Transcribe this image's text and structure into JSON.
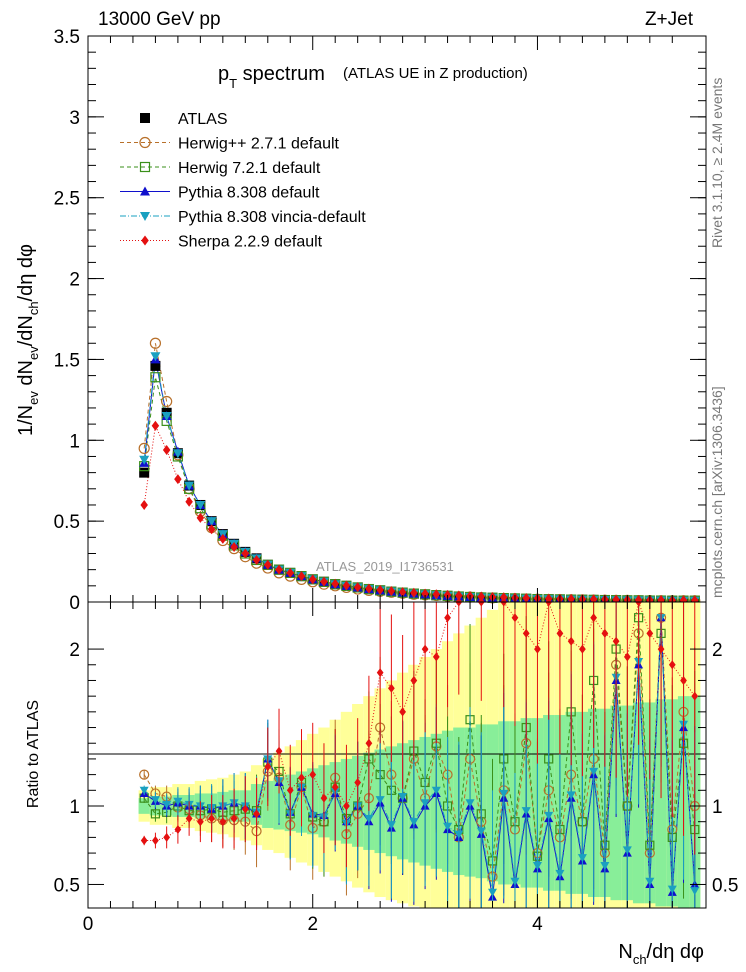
{
  "header": {
    "left": "13000 GeV pp",
    "right": "Z+Jet"
  },
  "title": {
    "main_p": "p",
    "main_sub": "T",
    "main_rest": " spectrum",
    "paren": "(ATLAS UE in Z production)"
  },
  "side_labels": {
    "rivet": "Rivet 3.1.10, ≥ 2.4M events",
    "mcplots": "mcplots.cern.ch [arXiv:1306.3436]"
  },
  "watermark": "ATLAS_2019_I1736531",
  "colors": {
    "atlas": "#000000",
    "herwigpp": "#b8702a",
    "herwig7": "#3a8f1a",
    "pythia": "#1010cc",
    "vincia": "#1aa0c0",
    "sherpa": "#e41010",
    "band_outer": "#ffff99",
    "band_inner": "#88ee99"
  },
  "chart_data": [
    {
      "type": "line",
      "panel": "main",
      "ylabel": "1/N_ev dN_ev/dN_ch/dη dφ",
      "xlim": [
        0,
        5.5
      ],
      "ylim": [
        0,
        3.5
      ],
      "y_ticks": [
        "0",
        "0.5",
        "1",
        "1.5",
        "2",
        "2.5",
        "3",
        "3.5"
      ],
      "x": [
        0.5,
        0.6,
        0.7,
        0.8,
        0.9,
        1.0,
        1.1,
        1.2,
        1.3,
        1.4,
        1.5,
        1.6,
        1.7,
        1.8,
        1.9,
        2.0,
        2.1,
        2.2,
        2.3,
        2.4,
        2.5,
        2.6,
        2.7,
        2.8,
        2.9,
        3.0,
        3.1,
        3.2,
        3.3,
        3.4,
        3.5,
        3.6,
        3.7,
        3.8,
        3.9,
        4.0,
        4.1,
        4.2,
        4.3,
        4.4,
        4.5,
        4.6,
        4.7,
        4.8,
        4.9,
        5.0,
        5.1,
        5.2,
        5.3,
        5.4
      ],
      "series": [
        {
          "name": "ATLAS",
          "key": "atlas",
          "marker": "square-filled",
          "line": "none",
          "values": [
            0.8,
            1.46,
            1.17,
            0.92,
            0.72,
            0.6,
            0.5,
            0.42,
            0.36,
            0.31,
            0.27,
            0.23,
            0.2,
            0.18,
            0.16,
            0.14,
            0.125,
            0.11,
            0.1,
            0.09,
            0.08,
            0.072,
            0.064,
            0.058,
            0.052,
            0.047,
            0.042,
            0.038,
            0.034,
            0.031,
            0.028,
            0.026,
            0.024,
            0.022,
            0.02,
            0.018,
            0.017,
            0.016,
            0.015,
            0.014,
            0.013,
            0.012,
            0.011,
            0.01,
            0.01,
            0.009,
            0.009,
            0.008,
            0.008,
            0.008
          ]
        },
        {
          "name": "Herwig++ 2.7.1 default",
          "key": "herwigpp",
          "marker": "circle-open",
          "line": "dashed",
          "values": [
            0.95,
            1.6,
            1.24,
            0.91,
            0.7,
            0.56,
            0.46,
            0.38,
            0.33,
            0.28,
            0.24,
            0.21,
            0.18,
            0.16,
            0.14,
            0.125,
            0.11,
            0.1,
            0.09,
            0.08,
            0.072,
            0.066,
            0.06,
            0.054,
            0.048,
            0.044,
            0.04,
            0.036,
            0.032,
            0.03,
            0.027,
            0.025,
            0.022,
            0.02,
            0.018,
            0.017,
            0.016,
            0.015,
            0.014,
            0.013,
            0.012,
            0.011,
            0.01,
            0.01,
            0.009,
            0.009,
            0.008,
            0.008,
            0.008,
            0.008
          ]
        },
        {
          "name": "Herwig 7.2.1 default",
          "key": "herwig7",
          "marker": "square-open",
          "line": "dashed",
          "values": [
            0.84,
            1.39,
            1.12,
            0.9,
            0.7,
            0.58,
            0.48,
            0.41,
            0.35,
            0.3,
            0.26,
            0.23,
            0.2,
            0.18,
            0.16,
            0.14,
            0.125,
            0.11,
            0.1,
            0.09,
            0.08,
            0.072,
            0.064,
            0.058,
            0.052,
            0.047,
            0.042,
            0.038,
            0.034,
            0.031,
            0.028,
            0.026,
            0.024,
            0.022,
            0.02,
            0.018,
            0.017,
            0.016,
            0.015,
            0.014,
            0.013,
            0.012,
            0.011,
            0.01,
            0.01,
            0.009,
            0.009,
            0.008,
            0.008,
            0.008
          ]
        },
        {
          "name": "Pythia 8.308 default",
          "key": "pythia",
          "marker": "triangle-up",
          "line": "solid",
          "values": [
            0.86,
            1.5,
            1.15,
            0.93,
            0.72,
            0.6,
            0.5,
            0.42,
            0.36,
            0.31,
            0.27,
            0.23,
            0.2,
            0.18,
            0.16,
            0.14,
            0.125,
            0.11,
            0.1,
            0.09,
            0.08,
            0.072,
            0.064,
            0.058,
            0.052,
            0.047,
            0.042,
            0.038,
            0.034,
            0.031,
            0.028,
            0.026,
            0.024,
            0.022,
            0.02,
            0.018,
            0.017,
            0.016,
            0.015,
            0.014,
            0.013,
            0.012,
            0.011,
            0.01,
            0.01,
            0.009,
            0.009,
            0.008,
            0.008,
            0.008
          ]
        },
        {
          "name": "Pythia 8.308 vincia-default",
          "key": "vincia",
          "marker": "triangle-down",
          "line": "dashdot",
          "values": [
            0.88,
            1.52,
            1.15,
            0.92,
            0.72,
            0.6,
            0.5,
            0.42,
            0.36,
            0.31,
            0.27,
            0.23,
            0.2,
            0.18,
            0.16,
            0.14,
            0.125,
            0.11,
            0.1,
            0.09,
            0.08,
            0.072,
            0.064,
            0.058,
            0.052,
            0.047,
            0.042,
            0.038,
            0.034,
            0.031,
            0.028,
            0.026,
            0.024,
            0.022,
            0.02,
            0.018,
            0.017,
            0.016,
            0.015,
            0.014,
            0.013,
            0.012,
            0.011,
            0.01,
            0.01,
            0.009,
            0.009,
            0.008,
            0.008,
            0.008
          ]
        },
        {
          "name": "Sherpa 2.2.9 default",
          "key": "sherpa",
          "marker": "diamond",
          "line": "dotted",
          "values": [
            0.6,
            1.09,
            0.94,
            0.76,
            0.62,
            0.52,
            0.45,
            0.39,
            0.34,
            0.3,
            0.26,
            0.23,
            0.2,
            0.18,
            0.16,
            0.14,
            0.126,
            0.113,
            0.102,
            0.092,
            0.083,
            0.075,
            0.068,
            0.062,
            0.057,
            0.052,
            0.048,
            0.044,
            0.04,
            0.037,
            0.034,
            0.031,
            0.029,
            0.027,
            0.025,
            0.023,
            0.021,
            0.02,
            0.019,
            0.018,
            0.017,
            0.016,
            0.015,
            0.014,
            0.013,
            0.012,
            0.012,
            0.011,
            0.011,
            0.011
          ]
        }
      ]
    },
    {
      "type": "line",
      "panel": "ratio",
      "ylabel": "Ratio to ATLAS",
      "xlabel": "N_ch/dη dφ",
      "xlim": [
        0,
        5.5
      ],
      "ylim": [
        0.35,
        2.3
      ],
      "x_ticks": [
        "0",
        "2",
        "4"
      ],
      "y_ticks": [
        "0.5",
        "1",
        "2"
      ],
      "x": [
        0.5,
        0.6,
        0.7,
        0.8,
        0.9,
        1.0,
        1.1,
        1.2,
        1.3,
        1.4,
        1.5,
        1.6,
        1.7,
        1.8,
        1.9,
        2.0,
        2.1,
        2.2,
        2.3,
        2.4,
        2.5,
        2.6,
        2.7,
        2.8,
        2.9,
        3.0,
        3.1,
        3.2,
        3.3,
        3.4,
        3.5,
        3.6,
        3.7,
        3.8,
        3.9,
        4.0,
        4.1,
        4.2,
        4.3,
        4.4,
        4.5,
        4.6,
        4.7,
        4.8,
        4.9,
        5.0,
        5.1,
        5.2,
        5.3,
        5.4
      ],
      "band_inner": [
        [
          0.95,
          1.05
        ],
        [
          0.94,
          1.06
        ],
        [
          0.94,
          1.06
        ],
        [
          0.93,
          1.07
        ],
        [
          0.93,
          1.07
        ],
        [
          0.92,
          1.08
        ],
        [
          0.92,
          1.08
        ],
        [
          0.91,
          1.09
        ],
        [
          0.9,
          1.1
        ],
        [
          0.9,
          1.1
        ],
        [
          0.88,
          1.14
        ],
        [
          0.86,
          1.16
        ],
        [
          0.85,
          1.18
        ],
        [
          0.84,
          1.2
        ],
        [
          0.83,
          1.22
        ],
        [
          0.82,
          1.24
        ],
        [
          0.8,
          1.26
        ],
        [
          0.78,
          1.28
        ],
        [
          0.76,
          1.3
        ],
        [
          0.74,
          1.32
        ],
        [
          0.72,
          1.34
        ],
        [
          0.7,
          1.36
        ],
        [
          0.68,
          1.38
        ],
        [
          0.66,
          1.4
        ],
        [
          0.64,
          1.42
        ],
        [
          0.62,
          1.44
        ],
        [
          0.6,
          1.46
        ],
        [
          0.58,
          1.48
        ],
        [
          0.56,
          1.5
        ],
        [
          0.55,
          1.5
        ],
        [
          0.54,
          1.52
        ],
        [
          0.52,
          1.52
        ],
        [
          0.5,
          1.54
        ],
        [
          0.5,
          1.54
        ],
        [
          0.48,
          1.56
        ],
        [
          0.48,
          1.56
        ],
        [
          0.46,
          1.58
        ],
        [
          0.46,
          1.58
        ],
        [
          0.44,
          1.6
        ],
        [
          0.44,
          1.6
        ],
        [
          0.42,
          1.62
        ],
        [
          0.42,
          1.62
        ],
        [
          0.4,
          1.64
        ],
        [
          0.4,
          1.64
        ],
        [
          0.38,
          1.66
        ],
        [
          0.38,
          1.66
        ],
        [
          0.36,
          1.68
        ],
        [
          0.36,
          1.68
        ],
        [
          0.35,
          1.7
        ],
        [
          0.35,
          1.7
        ]
      ],
      "band_outer": [
        [
          0.9,
          1.1
        ],
        [
          0.88,
          1.12
        ],
        [
          0.88,
          1.12
        ],
        [
          0.86,
          1.14
        ],
        [
          0.86,
          1.14
        ],
        [
          0.84,
          1.16
        ],
        [
          0.83,
          1.17
        ],
        [
          0.82,
          1.18
        ],
        [
          0.8,
          1.2
        ],
        [
          0.78,
          1.22
        ],
        [
          0.75,
          1.26
        ],
        [
          0.72,
          1.3
        ],
        [
          0.7,
          1.34
        ],
        [
          0.67,
          1.38
        ],
        [
          0.64,
          1.42
        ],
        [
          0.62,
          1.46
        ],
        [
          0.58,
          1.5
        ],
        [
          0.55,
          1.55
        ],
        [
          0.52,
          1.6
        ],
        [
          0.48,
          1.65
        ],
        [
          0.45,
          1.7
        ],
        [
          0.42,
          1.75
        ],
        [
          0.4,
          1.8
        ],
        [
          0.38,
          1.85
        ],
        [
          0.36,
          1.9
        ],
        [
          0.35,
          1.95
        ],
        [
          0.35,
          2.0
        ],
        [
          0.35,
          2.05
        ],
        [
          0.35,
          2.1
        ],
        [
          0.35,
          2.15
        ],
        [
          0.35,
          2.2
        ],
        [
          0.35,
          2.25
        ],
        [
          0.35,
          2.3
        ],
        [
          0.35,
          2.3
        ],
        [
          0.35,
          2.3
        ],
        [
          0.35,
          2.3
        ],
        [
          0.35,
          2.3
        ],
        [
          0.35,
          2.3
        ],
        [
          0.35,
          2.3
        ],
        [
          0.35,
          2.3
        ],
        [
          0.35,
          2.3
        ],
        [
          0.35,
          2.3
        ],
        [
          0.35,
          2.3
        ],
        [
          0.35,
          2.3
        ],
        [
          0.35,
          2.3
        ],
        [
          0.35,
          2.3
        ],
        [
          0.35,
          2.3
        ],
        [
          0.35,
          2.3
        ],
        [
          0.35,
          2.3
        ],
        [
          0.35,
          2.3
        ]
      ],
      "series": [
        {
          "name": "Herwig++ 2.7.1 default",
          "key": "herwigpp",
          "marker": "circle-open",
          "line": "dashed",
          "values": [
            1.2,
            1.08,
            1.06,
            0.99,
            0.98,
            0.94,
            0.92,
            0.91,
            0.91,
            0.9,
            0.84,
            1.22,
            1.18,
            0.88,
            1.12,
            0.86,
            0.9,
            1.18,
            0.82,
            0.95,
            1.05,
            1.5,
            1.2,
            1.05,
            1.3,
            1.05,
            1.38,
            1.2,
            0.8,
            1.3,
            0.9,
            0.55,
            1.1,
            0.85,
            1.4,
            0.7,
            1.1,
            0.8,
            1.2,
            0.9,
            1.3,
            0.7,
            1.9,
            1.0,
            2.1,
            0.7,
            2.2,
            0.85,
            1.6,
            1.0
          ]
        },
        {
          "name": "Herwig 7.2.1 default",
          "key": "herwig7",
          "marker": "square-open",
          "line": "dashed",
          "values": [
            1.05,
            0.95,
            0.96,
            1.0,
            0.97,
            0.97,
            0.98,
            0.96,
            0.97,
            0.98,
            0.97,
            1.28,
            1.22,
            0.95,
            1.15,
            0.93,
            0.9,
            1.12,
            0.92,
            1.0,
            1.3,
            1.2,
            1.1,
            1.05,
            1.35,
            1.15,
            1.4,
            1.0,
            0.85,
            1.55,
            0.95,
            0.65,
            1.3,
            0.9,
            1.5,
            0.68,
            1.3,
            0.85,
            1.6,
            0.9,
            1.8,
            0.75,
            2.0,
            1.0,
            2.2,
            0.75,
            2.1,
            0.8,
            1.4,
            0.85
          ]
        },
        {
          "name": "Pythia 8.308 default",
          "key": "pythia",
          "marker": "triangle-up",
          "line": "solid",
          "values": [
            1.08,
            1.03,
            1.0,
            1.02,
            1.0,
            1.0,
            0.98,
            1.0,
            1.02,
            1.0,
            0.95,
            1.3,
            1.15,
            0.96,
            1.12,
            0.95,
            0.94,
            1.08,
            0.9,
            1.0,
            0.9,
            1.02,
            0.86,
            1.05,
            0.88,
            1.0,
            1.08,
            0.85,
            0.8,
            1.0,
            0.82,
            0.42,
            1.05,
            0.5,
            0.95,
            0.6,
            0.92,
            0.55,
            1.05,
            0.65,
            1.2,
            0.6,
            1.8,
            0.7,
            1.9,
            0.5,
            2.2,
            0.45,
            1.5,
            0.5
          ]
        },
        {
          "name": "Pythia 8.308 vincia-default",
          "key": "vincia",
          "marker": "triangle-down",
          "line": "dashdot",
          "values": [
            1.1,
            1.04,
            1.01,
            1.03,
            1.01,
            1.0,
            0.99,
            1.0,
            1.02,
            1.0,
            0.96,
            1.3,
            1.16,
            0.95,
            1.12,
            0.94,
            0.93,
            1.09,
            0.89,
            1.0,
            0.92,
            1.04,
            0.88,
            1.06,
            0.9,
            1.02,
            1.1,
            0.87,
            0.82,
            1.02,
            0.84,
            0.45,
            1.08,
            0.52,
            0.97,
            0.62,
            0.94,
            0.57,
            1.07,
            0.67,
            1.22,
            0.62,
            1.82,
            0.72,
            1.92,
            0.52,
            2.2,
            0.47,
            1.52,
            0.46
          ]
        },
        {
          "name": "Sherpa 2.2.9 default",
          "key": "sherpa",
          "marker": "diamond",
          "line": "dotted",
          "values": [
            0.78,
            0.78,
            0.8,
            0.85,
            0.92,
            0.9,
            0.92,
            0.9,
            0.92,
            0.98,
            0.95,
            1.25,
            1.35,
            1.1,
            1.18,
            1.2,
            1.05,
            1.12,
            1.0,
            1.15,
            1.4,
            1.85,
            1.75,
            1.6,
            1.8,
            2.0,
            1.95,
            2.2,
            2.3,
            2.4,
            2.3,
            2.5,
            2.3,
            2.2,
            2.1,
            2.0,
            2.3,
            2.1,
            2.05,
            2.0,
            2.2,
            2.1,
            2.05,
            1.95,
            2.3,
            2.1,
            2.0,
            1.9,
            1.8,
            1.7
          ]
        }
      ]
    }
  ]
}
